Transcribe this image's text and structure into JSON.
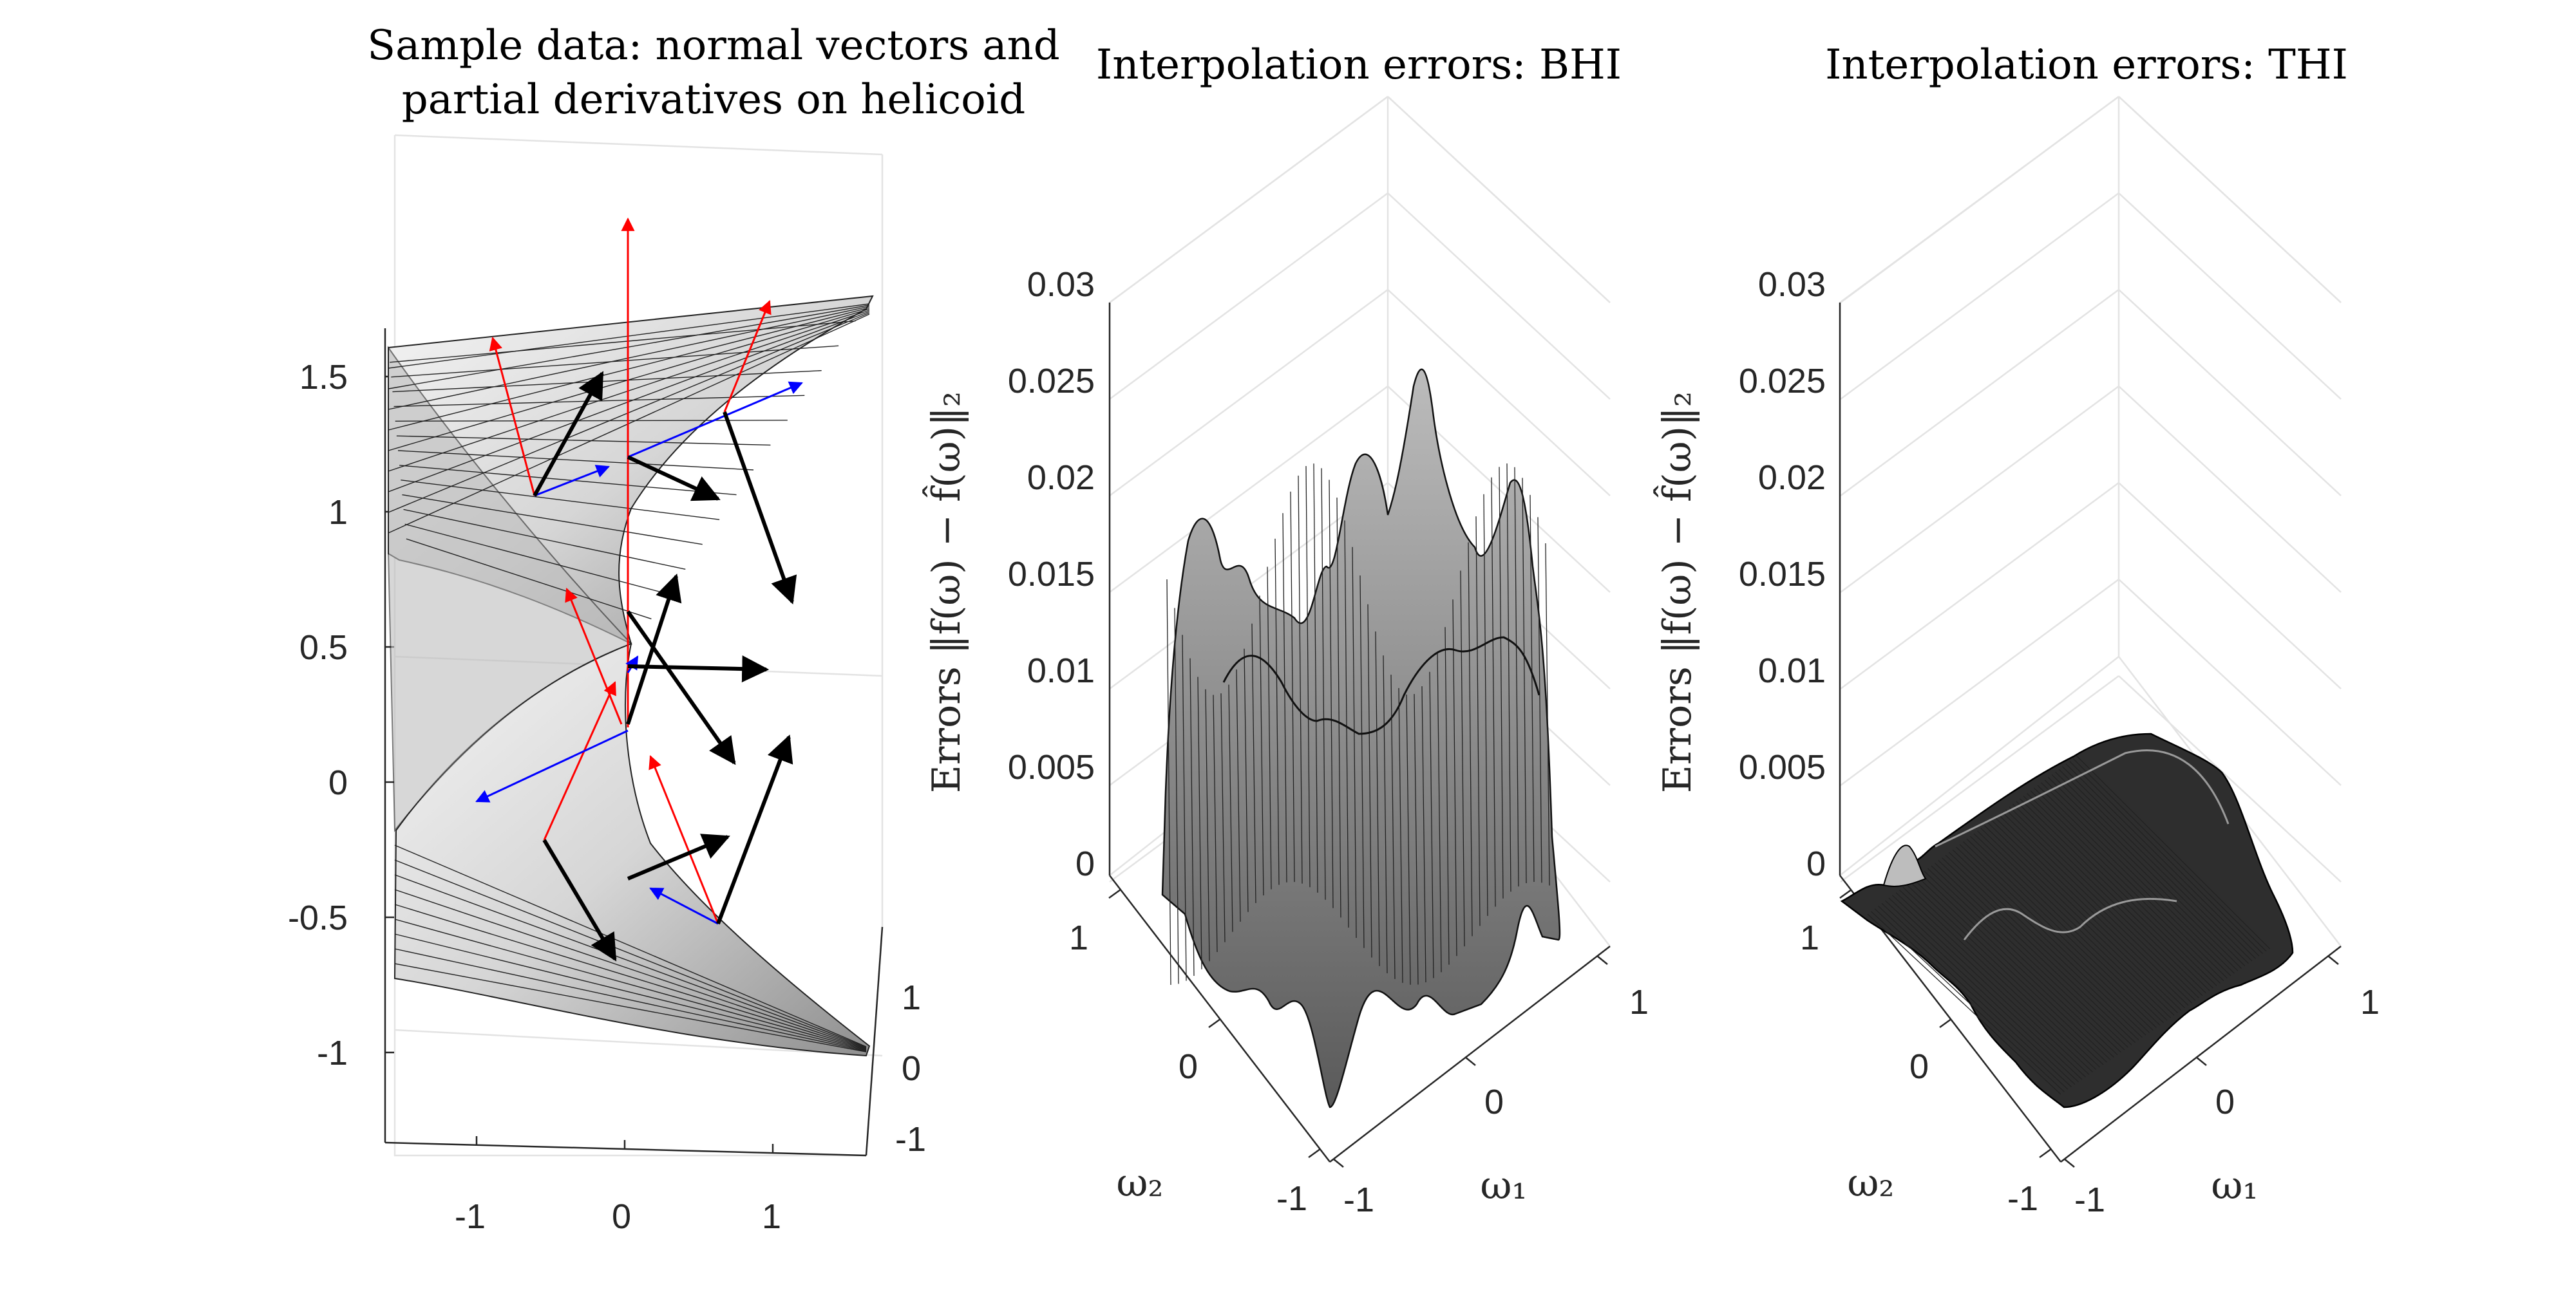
{
  "chart_data": [
    {
      "type": "surface",
      "title_lines": [
        "Sample data: normal vectors and",
        "partial derivatives on helicoid"
      ],
      "z_ticks": [
        "1.5",
        "1",
        "0.5",
        "0",
        "-0.5",
        "-1"
      ],
      "x_ticks": [
        "-1",
        "0",
        "1"
      ],
      "y_ticks": [
        "1",
        "0",
        "-1"
      ],
      "vector_colors": {
        "normal": "#000000",
        "partial_u": "#ff0000",
        "partial_v": "#0000ff"
      }
    },
    {
      "type": "surface",
      "title": "Interpolation errors: BHI",
      "zlabel": "Errors ‖f(ω) − f̂(ω)‖₂",
      "xlabel": "ω₁",
      "ylabel": "ω₂",
      "zlim": [
        0,
        0.03
      ],
      "z_ticks": [
        "0.03",
        "0.025",
        "0.02",
        "0.015",
        "0.01",
        "0.005",
        "0"
      ],
      "x_ticks": [
        "1",
        "0",
        "-1"
      ],
      "y_ticks": [
        "1",
        "0",
        "-1"
      ],
      "peak_error": 0.027
    },
    {
      "type": "surface",
      "title": "Interpolation errors: THI",
      "zlabel": "Errors ‖f(ω) − f̂(ω)‖₂",
      "xlabel": "ω₁",
      "ylabel": "ω₂",
      "zlim": [
        0,
        0.03
      ],
      "z_ticks": [
        "0.03",
        "0.025",
        "0.02",
        "0.015",
        "0.01",
        "0.005",
        "0"
      ],
      "x_ticks": [
        "1",
        "0",
        "-1"
      ],
      "y_ticks": [
        "1",
        "0",
        "-1"
      ],
      "peak_error": 0.0075
    }
  ]
}
